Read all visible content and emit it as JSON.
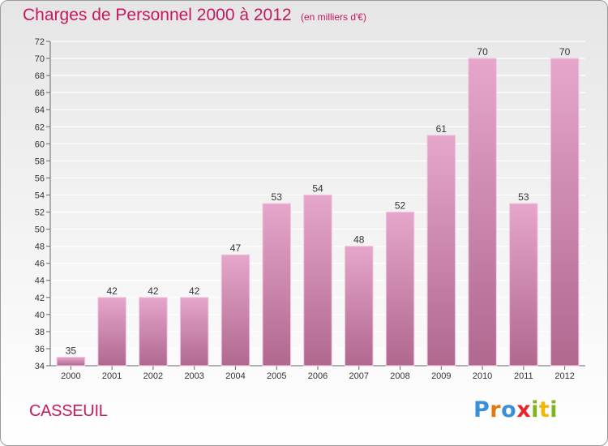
{
  "title": "Charges de Personnel 2000 à 2012",
  "subtitle": "(en milliers d'€)",
  "commune": "CASSEUIL",
  "logo": {
    "letters": [
      {
        "ch": "P",
        "color": "#3a8fd6"
      },
      {
        "ch": "r",
        "color": "#e07a10"
      },
      {
        "ch": "o",
        "color": "#3a8fd6"
      },
      {
        "ch": "x",
        "color": "#e8262a"
      },
      {
        "ch": "i",
        "color": "#7cb51c"
      },
      {
        "ch": "t",
        "color": "#f2b705"
      },
      {
        "ch": "i",
        "color": "#7cb51c"
      }
    ]
  },
  "colors": {
    "title": "#c7175f",
    "bar_top": "#e6a6cc",
    "bar_bottom": "#b0688f",
    "grid": "#ffffff"
  },
  "chart_data": {
    "type": "bar",
    "categories": [
      "2000",
      "2001",
      "2002",
      "2003",
      "2004",
      "2005",
      "2006",
      "2007",
      "2008",
      "2009",
      "2010",
      "2011",
      "2012"
    ],
    "values": [
      35,
      42,
      42,
      42,
      47,
      53,
      54,
      48,
      52,
      61,
      70,
      53,
      70
    ],
    "ylim": [
      34,
      72
    ],
    "yticks": [
      34,
      36,
      38,
      40,
      42,
      44,
      46,
      48,
      50,
      52,
      54,
      56,
      58,
      60,
      62,
      64,
      66,
      68,
      70,
      72
    ],
    "grid": true,
    "title": "Charges de Personnel 2000 à 2012",
    "xlabel": "",
    "ylabel": ""
  }
}
